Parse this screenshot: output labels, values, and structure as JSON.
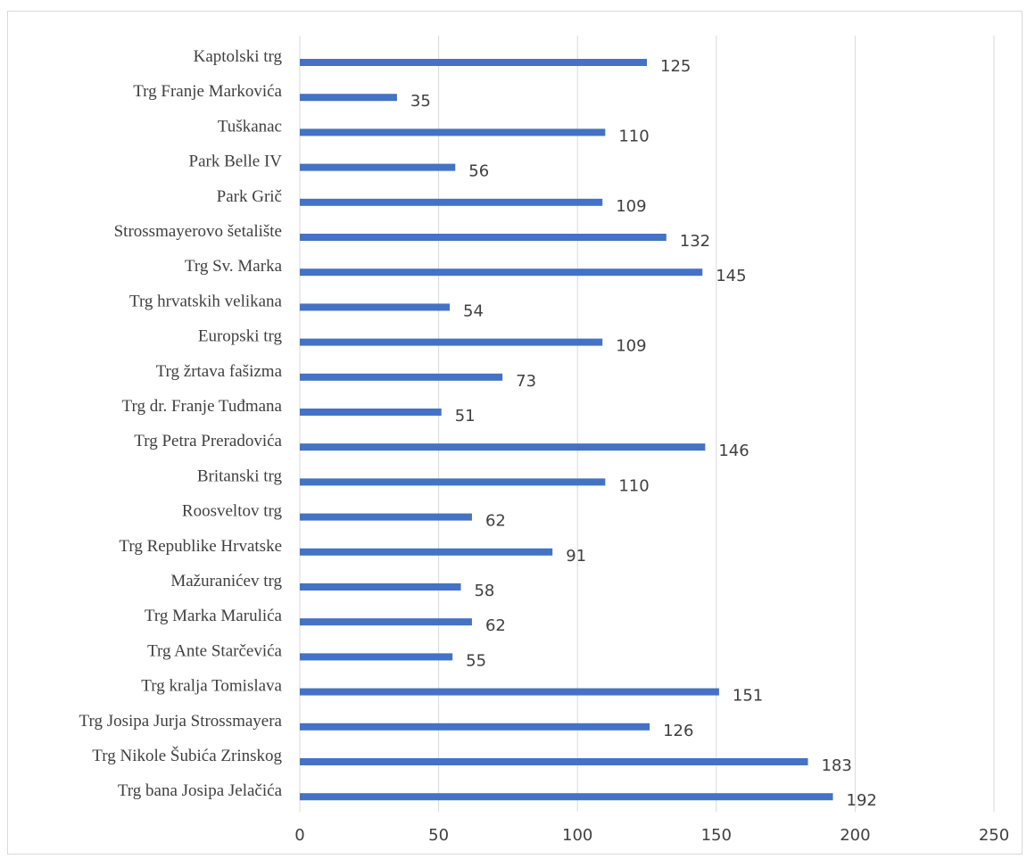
{
  "chart_data": {
    "type": "bar",
    "orientation": "horizontal",
    "title": "",
    "xlabel": "",
    "ylabel": "",
    "xlim": [
      0,
      250
    ],
    "x_ticks": [
      0,
      50,
      100,
      150,
      200,
      250
    ],
    "grid": true,
    "legend": "none",
    "bar_color": "#4472c4",
    "categories": [
      "Kaptolski trg",
      "Trg Franje Markovića",
      "Tuškanac",
      "Park Belle IV",
      "Park Grič",
      "Strossmayerovo šetalište",
      "Trg Sv. Marka",
      "Trg hrvatskih velikana",
      "Europski trg",
      "Trg žrtava fašizma",
      "Trg dr. Franje Tuđmana",
      "Trg Petra Preradovića",
      "Britanski trg",
      "Roosveltov trg",
      "Trg Republike Hrvatske",
      "Mažuranićev trg",
      "Trg Marka Marulića",
      "Trg Ante Starčevića",
      "Trg kralja Tomislava",
      "Trg Josipa Jurja Strossmayera",
      "Trg Nikole Šubića Zrinskog",
      "Trg bana Josipa Jelačića"
    ],
    "values": [
      125,
      35,
      110,
      56,
      109,
      132,
      145,
      54,
      109,
      73,
      51,
      146,
      110,
      62,
      91,
      58,
      62,
      55,
      151,
      126,
      183,
      192
    ]
  }
}
